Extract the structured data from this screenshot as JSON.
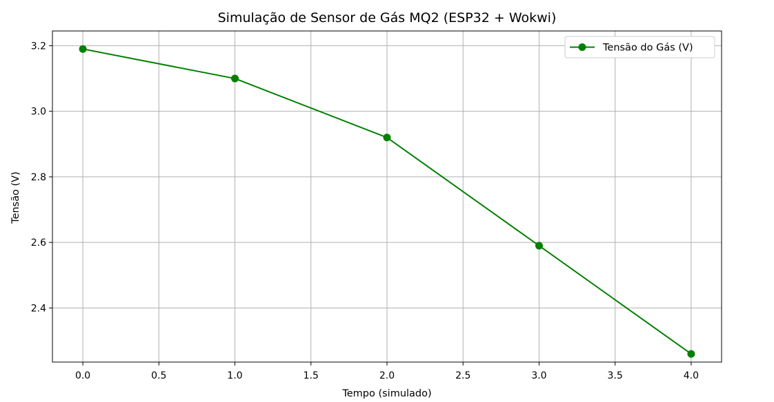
{
  "chart_data": {
    "type": "line",
    "title": "Simulação de Sensor de Gás MQ2 (ESP32 + Wokwi)",
    "xlabel": "Tempo (simulado)",
    "ylabel": "Tensão (V)",
    "xlim": [
      -0.2,
      4.2
    ],
    "ylim": [
      2.235,
      3.245
    ],
    "xticks": [
      0.0,
      0.5,
      1.0,
      1.5,
      2.0,
      2.5,
      3.0,
      3.5,
      4.0
    ],
    "xtick_labels": [
      "0.0",
      "0.5",
      "1.0",
      "1.5",
      "2.0",
      "2.5",
      "3.0",
      "3.5",
      "4.0"
    ],
    "yticks": [
      2.4,
      2.6,
      2.8,
      3.0,
      3.2
    ],
    "ytick_labels": [
      "2.4",
      "2.6",
      "2.8",
      "3.0",
      "3.2"
    ],
    "grid": true,
    "legend_position": "upper-right",
    "series": [
      {
        "name": "Tensão do Gás (V)",
        "color": "#008000",
        "marker": "circle",
        "x": [
          0,
          1,
          2,
          3,
          4
        ],
        "y": [
          3.19,
          3.1,
          2.92,
          2.59,
          2.26
        ]
      }
    ]
  }
}
